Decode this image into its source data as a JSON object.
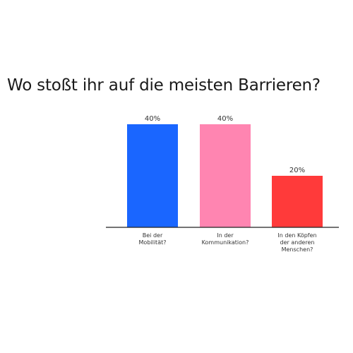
{
  "chart_data": {
    "type": "bar",
    "title": "Wo stoßt ihr auf die meisten Barrieren?",
    "categories": [
      [
        "Bei der",
        "Mobilität?"
      ],
      [
        "In der",
        "Kommunikation?"
      ],
      [
        "In den Köpfen",
        "der anderen",
        "Menschen?"
      ]
    ],
    "values": [
      40,
      40,
      20
    ],
    "value_labels": [
      "40%",
      "40%",
      "20%"
    ],
    "unit": "%",
    "colors": [
      "#1a66ff",
      "#ff85b1",
      "#ff3a3a"
    ],
    "ylim": [
      0,
      40
    ],
    "grid": false,
    "legend": "none"
  }
}
